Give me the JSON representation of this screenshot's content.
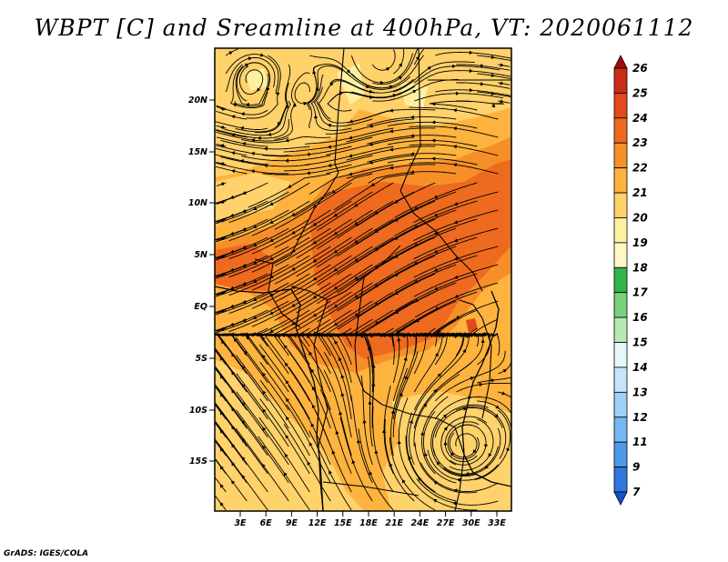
{
  "title": "WBPT [C] and Sreamline at 400hPa, VT: 2020061112",
  "footer": "GrADS: IGES/COLA",
  "map": {
    "lat_labels": [
      "20N",
      "15N",
      "10N",
      "5N",
      "EQ",
      "5S",
      "10S",
      "15S"
    ],
    "lon_labels": [
      "3E",
      "6E",
      "9E",
      "12E",
      "15E",
      "18E",
      "21E",
      "24E",
      "27E",
      "30E",
      "33E"
    ],
    "colors": {
      "c19": "#fff0a0",
      "c20": "#ffd26b",
      "c21": "#fdb33e",
      "c22": "#f78f29",
      "c23": "#ee6a1e",
      "c24": "#e4491b",
      "c25": "#c92d17",
      "c26": "#a50a0a",
      "border": "#000000",
      "stream": "#000000"
    }
  },
  "colorbar": {
    "labels": [
      "26",
      "25",
      "24",
      "23",
      "22",
      "21",
      "20",
      "19",
      "18",
      "17",
      "16",
      "15",
      "14",
      "13",
      "12",
      "11",
      "9",
      "7"
    ],
    "colors": [
      "#a50a0a",
      "#c92d17",
      "#e4491b",
      "#ee6a1e",
      "#f78f29",
      "#fdb33e",
      "#ffd26b",
      "#fff0a0",
      "#fff7c5",
      "#33b44a",
      "#77d27a",
      "#b7eab3",
      "#e4f7fb",
      "#c6e5fb",
      "#9fd1f7",
      "#74b7f2",
      "#4f9ae8",
      "#2f77de",
      "#1452d0"
    ]
  }
}
